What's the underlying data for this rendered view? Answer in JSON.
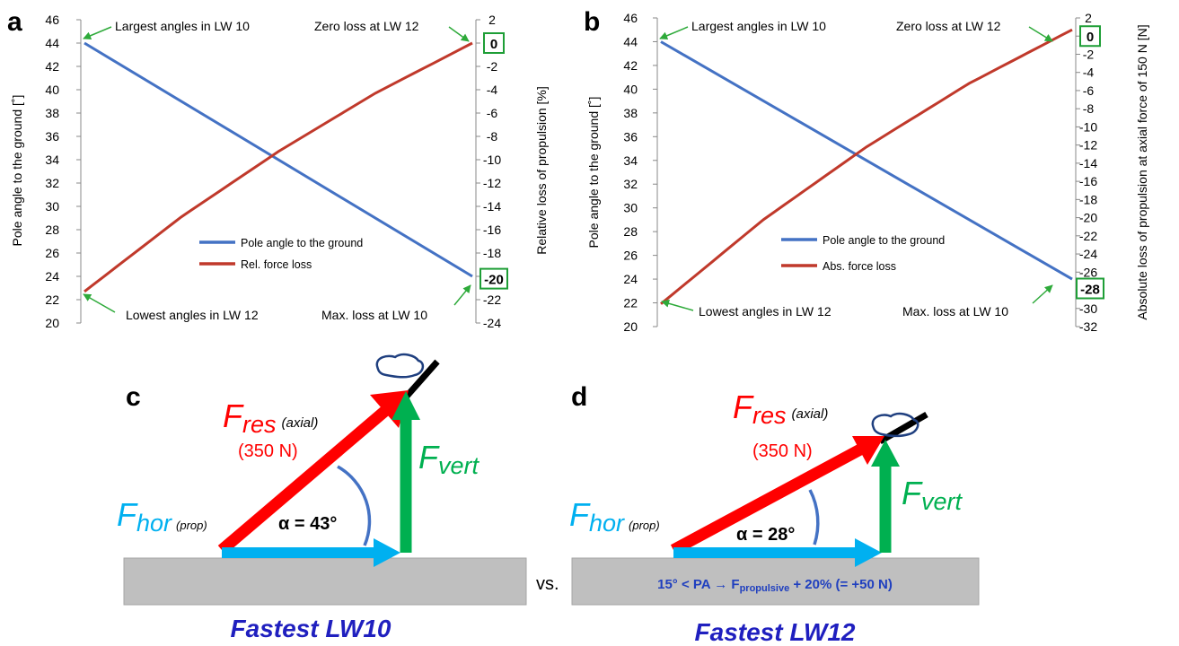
{
  "colors": {
    "pole": "#4472C4",
    "loss": "#C0392B",
    "annotation_arrow": "#2EAA3A",
    "box": "#1E9E36",
    "f_res": "#FF0000",
    "f_hor": "#00B0F0",
    "f_vert": "#00B050",
    "pole_stick": "#000000",
    "ground": "#BFBFBF",
    "caption": "#1F1FBF",
    "note": "#1F3FBF"
  },
  "chart_data": [
    {
      "type": "line",
      "panel_label": "a",
      "ylabel_left": "Pole angle to the ground [˚]",
      "ylabel_right": "Relative loss of propulsion [%]",
      "ylim_left": [
        20,
        46
      ],
      "yticks_left": [
        "20",
        "22",
        "24",
        "26",
        "28",
        "30",
        "32",
        "34",
        "36",
        "38",
        "40",
        "42",
        "44",
        "46"
      ],
      "ylim_right": [
        -24,
        2
      ],
      "yticks_right": [
        "-24",
        "-22",
        "-20",
        "-18",
        "-16",
        "-14",
        "-12",
        "-10",
        "-8",
        "-6",
        "-4",
        "-2",
        "0",
        "2"
      ],
      "grid": false,
      "legend_position": "lower-center",
      "series": [
        {
          "name": "Pole angle to the ground",
          "axis": "left",
          "x": [
            0,
            1
          ],
          "y": [
            44,
            24
          ]
        },
        {
          "name": "Rel. force loss",
          "axis": "right",
          "x": [
            0,
            0.25,
            0.5,
            0.75,
            1
          ],
          "y": [
            -21.3,
            -14.9,
            -9.3,
            -4.3,
            0
          ]
        }
      ],
      "boxed_values": [
        {
          "text": "0",
          "y": 0
        },
        {
          "text": "-20",
          "y": -20.2
        }
      ],
      "annotations": {
        "top_left": "Largest angles in LW 10",
        "top_right": "Zero loss at LW 12",
        "bottom_left": "Lowest angles in LW 12",
        "bottom_right": "Max. loss at LW 10"
      }
    },
    {
      "type": "line",
      "panel_label": "b",
      "ylabel_left": "Pole angle to the ground [˚]",
      "ylabel_right": "Absolute loss of propulsion at axial force of 150 N [N]",
      "ylim_left": [
        20,
        46
      ],
      "yticks_left": [
        "20",
        "22",
        "24",
        "26",
        "28",
        "30",
        "32",
        "34",
        "36",
        "38",
        "40",
        "42",
        "44",
        "46"
      ],
      "ylim_right": [
        -32,
        2
      ],
      "yticks_right": [
        "-32",
        "-30",
        "-28",
        "-26",
        "-24",
        "-22",
        "-20",
        "-18",
        "-16",
        "-14",
        "-12",
        "-10",
        "-8",
        "-6",
        "-4",
        "-2",
        "0",
        "2"
      ],
      "grid": false,
      "legend_position": "lower-center",
      "series": [
        {
          "name": "Pole angle to the ground",
          "axis": "left",
          "x": [
            0,
            1
          ],
          "y": [
            44,
            24
          ]
        },
        {
          "name": "Abs. force loss",
          "axis": "right",
          "x": [
            0,
            0.25,
            0.5,
            0.75,
            1
          ],
          "y": [
            -29.5,
            -20.2,
            -12.2,
            -5.2,
            0.7
          ]
        }
      ],
      "boxed_values": [
        {
          "text": "0",
          "y": 0
        },
        {
          "text": "-28",
          "y": -27.8
        }
      ],
      "annotations": {
        "top_left": "Largest angles in LW 10",
        "top_right": "Zero loss at LW 12",
        "bottom_left": "Lowest angles in LW 12",
        "bottom_right": "Max. loss at LW 10"
      }
    }
  ],
  "diagrams": [
    {
      "panel_label": "c",
      "f_res": "F",
      "f_res_sub": "res",
      "f_res_qualifier": "(axial)",
      "f_res_value": "(350 N)",
      "f_hor": "F",
      "f_hor_sub": "hor",
      "f_hor_qualifier": "(prop)",
      "f_vert": "F",
      "f_vert_sub": "vert",
      "angle": "α = 43°",
      "caption": "Fastest LW10"
    },
    {
      "panel_label": "d",
      "f_res": "F",
      "f_res_sub": "res",
      "f_res_qualifier": "(axial)",
      "f_res_value": "(350 N)",
      "f_hor": "F",
      "f_hor_sub": "hor",
      "f_hor_qualifier": "(prop)",
      "f_vert": "F",
      "f_vert_sub": "vert",
      "angle": "α = 28°",
      "note_prefix": "15° < PA → F",
      "note_sub": "propulsive",
      "note_suffix": " + 20% (= +50 N)",
      "caption": "Fastest LW12"
    }
  ],
  "vs_label": "vs."
}
